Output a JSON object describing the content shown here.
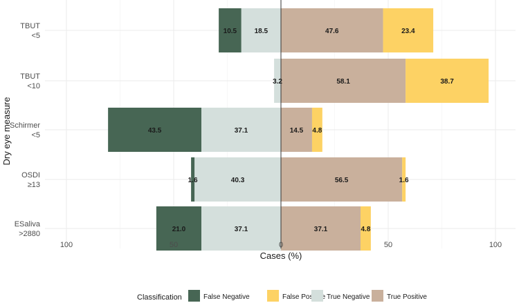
{
  "chart_data": {
    "type": "bar",
    "orientation": "horizontal-diverging",
    "xlabel": "Cases (%)",
    "ylabel": "Dry eye measure",
    "xlim": [
      -100,
      100
    ],
    "xticks": [
      -100,
      -50,
      0,
      50,
      100
    ],
    "xtick_labels": [
      "100",
      "50",
      "0",
      "50",
      "100"
    ],
    "grid": true,
    "categories": [
      {
        "line1": "TBUT",
        "line2": "<5"
      },
      {
        "line1": "TBUT",
        "line2": "<10"
      },
      {
        "line1": "Schirmer",
        "line2": "<5"
      },
      {
        "line1": "OSDI",
        "line2": "≥13"
      },
      {
        "line1": "ESaliva",
        "line2": ">2880"
      }
    ],
    "series": [
      {
        "name": "False Negative",
        "side": "negative",
        "order": "outer",
        "color": "#476654",
        "values": [
          10.5,
          0,
          43.5,
          1.6,
          21.0
        ],
        "labels": [
          "10.5",
          "",
          "43.5",
          "1.6",
          "21.0"
        ]
      },
      {
        "name": "True Negative",
        "side": "negative",
        "order": "inner",
        "color": "#d4dfdc",
        "values": [
          18.5,
          3.2,
          37.1,
          40.3,
          37.1
        ],
        "labels": [
          "18.5",
          "3.2",
          "37.1",
          "40.3",
          "37.1"
        ]
      },
      {
        "name": "True Positive",
        "side": "positive",
        "order": "inner",
        "color": "#c9b09c",
        "values": [
          47.6,
          58.1,
          14.5,
          56.5,
          37.1
        ],
        "labels": [
          "47.6",
          "58.1",
          "14.5",
          "56.5",
          "37.1"
        ]
      },
      {
        "name": "False Positive",
        "side": "positive",
        "order": "outer",
        "color": "#fdd264",
        "values": [
          23.4,
          38.7,
          4.8,
          1.6,
          4.8
        ],
        "labels": [
          "23.4",
          "38.7",
          "4.8",
          "1.6",
          "4.8"
        ]
      }
    ],
    "legend": {
      "title": "Classification",
      "position": "bottom",
      "entries": [
        {
          "name": "False Negative",
          "color": "#476654"
        },
        {
          "name": "False Positive",
          "color": "#fdd264"
        },
        {
          "name": "True Negative",
          "color": "#d4dfdc"
        },
        {
          "name": "True Positive",
          "color": "#c9b09c"
        }
      ]
    }
  }
}
